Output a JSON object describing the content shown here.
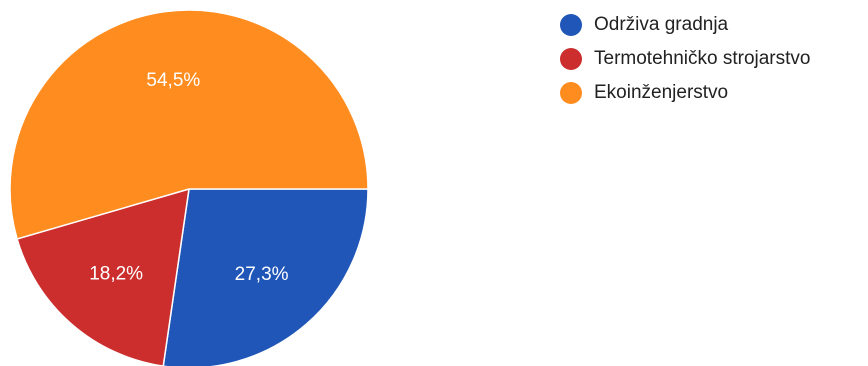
{
  "chart_data": {
    "type": "pie",
    "title": "",
    "series": [
      {
        "name": "",
        "labels": [
          "Održiva gradnja",
          "Termotehničko strojarstvo",
          "Ekoinženjerstvo"
        ],
        "values": [
          27.3,
          18.2,
          54.5
        ],
        "value_labels": [
          "27,3%",
          "18,2%",
          "54,5%"
        ],
        "colors": [
          "#1f56b8",
          "#cc2e2e",
          "#ff8c1f"
        ]
      }
    ],
    "legend_position": "top-right",
    "start": "3 o'clock, clockwise"
  }
}
